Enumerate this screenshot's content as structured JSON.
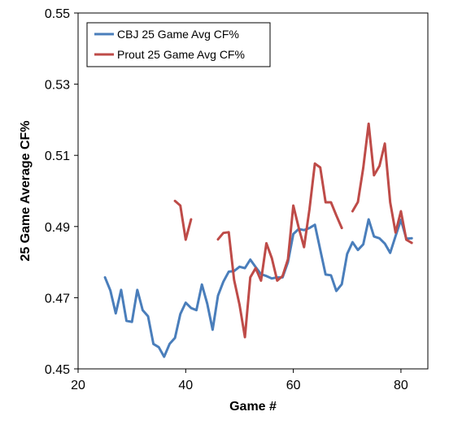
{
  "chart_data": {
    "type": "line",
    "title": "",
    "xlabel": "Game #",
    "ylabel": "25 Game Average CF%",
    "xlim": [
      20,
      85
    ],
    "ylim": [
      0.45,
      0.55
    ],
    "xticks": [
      20,
      40,
      60,
      80
    ],
    "xtick_labels": [
      "20",
      "40",
      "60",
      "80"
    ],
    "yticks": [
      0.45,
      0.47,
      0.49,
      0.51,
      0.53,
      0.55
    ],
    "ytick_labels": [
      "0.45",
      "0.47",
      "0.49",
      "0.51",
      "0.53",
      "0.55"
    ],
    "grid": false,
    "legend_position": "top-left",
    "series": [
      {
        "name": "CBJ 25 Game Avg CF%",
        "color": "#4a7ebb",
        "x": [
          25,
          26,
          27,
          28,
          29,
          30,
          31,
          32,
          33,
          34,
          35,
          36,
          37,
          38,
          39,
          40,
          41,
          42,
          43,
          44,
          45,
          46,
          47,
          48,
          49,
          50,
          51,
          52,
          53,
          54,
          55,
          56,
          57,
          58,
          59,
          60,
          61,
          62,
          63,
          64,
          65,
          66,
          67,
          68,
          69,
          70,
          71,
          72,
          73,
          74,
          75,
          76,
          77,
          78,
          79,
          80,
          81,
          82
        ],
        "y": [
          0.4757,
          0.472,
          0.4656,
          0.4722,
          0.4635,
          0.4632,
          0.4722,
          0.4665,
          0.4648,
          0.457,
          0.4561,
          0.4534,
          0.457,
          0.4587,
          0.4654,
          0.4686,
          0.4671,
          0.4665,
          0.4737,
          0.4683,
          0.461,
          0.4706,
          0.4745,
          0.4773,
          0.4775,
          0.4787,
          0.4783,
          0.4807,
          0.4786,
          0.4766,
          0.4761,
          0.4754,
          0.4757,
          0.4757,
          0.48,
          0.4879,
          0.4893,
          0.489,
          0.4896,
          0.4905,
          0.4835,
          0.4765,
          0.4763,
          0.4719,
          0.4738,
          0.4823,
          0.4856,
          0.4834,
          0.485,
          0.492,
          0.4872,
          0.4867,
          0.4852,
          0.4826,
          0.4873,
          0.4919,
          0.4866,
          0.4867
        ]
      },
      {
        "name": "Prout 25 Game Avg CF%",
        "color": "#be4b48",
        "segments": [
          {
            "x": [
              38,
              39,
              40,
              41
            ],
            "y": [
              0.4972,
              0.4959,
              0.4863,
              0.492
            ]
          },
          {
            "x": [
              46,
              47,
              48,
              49,
              50,
              51,
              52,
              53,
              54,
              55,
              56,
              57,
              58,
              59,
              60,
              61,
              62,
              63,
              64,
              65,
              66,
              67,
              68,
              69
            ],
            "y": [
              0.4864,
              0.4882,
              0.4884,
              0.475,
              0.468,
              0.4589,
              0.4757,
              0.4783,
              0.4748,
              0.4853,
              0.4811,
              0.4748,
              0.4761,
              0.4808,
              0.4959,
              0.4897,
              0.4842,
              0.4949,
              0.5077,
              0.5066,
              0.4968,
              0.4968,
              0.4931,
              0.4896
            ]
          },
          {
            "x": [
              71,
              72,
              73,
              74,
              75,
              76,
              77,
              78,
              79,
              80,
              81,
              82
            ],
            "y": [
              0.4943,
              0.4969,
              0.5065,
              0.5189,
              0.5044,
              0.507,
              0.5133,
              0.4968,
              0.4883,
              0.4943,
              0.4863,
              0.4854
            ]
          }
        ]
      }
    ]
  }
}
